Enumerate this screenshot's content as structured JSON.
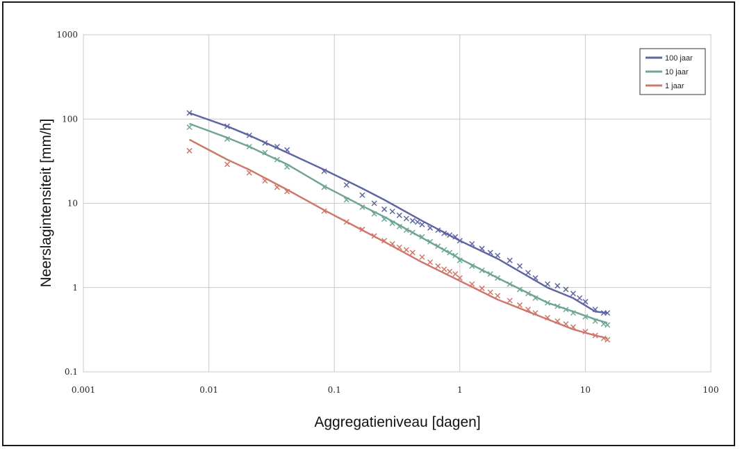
{
  "chart_data": {
    "type": "line",
    "title": "",
    "xlabel": "Aggregatieniveau [dagen]",
    "ylabel": "Neerslagintensiteit [mm/h]",
    "x_scale": "log",
    "y_scale": "log",
    "xlim": [
      0.001,
      100
    ],
    "ylim": [
      0.1,
      1000
    ],
    "x_ticks": [
      "0.001",
      "0.01",
      "0.1",
      "1",
      "10",
      "100"
    ],
    "y_ticks": [
      "1000",
      "100",
      "10",
      "1",
      "0.1"
    ],
    "grid": true,
    "legend_position": "top-right",
    "series": [
      {
        "name": "100 jaar",
        "color": "#5d66a3",
        "line": [
          [
            0.007,
            118
          ],
          [
            0.014,
            82
          ],
          [
            0.021,
            64
          ],
          [
            0.042,
            40
          ],
          [
            0.083,
            25
          ],
          [
            0.167,
            15
          ],
          [
            0.25,
            11
          ],
          [
            0.5,
            6.2
          ],
          [
            1,
            3.6
          ],
          [
            2,
            2.2
          ],
          [
            5,
            1.0
          ],
          [
            8,
            0.75
          ],
          [
            12,
            0.52
          ],
          [
            15,
            0.5
          ]
        ],
        "markers": [
          [
            0.007,
            118
          ],
          [
            0.014,
            82
          ],
          [
            0.021,
            64
          ],
          [
            0.028,
            52
          ],
          [
            0.035,
            47
          ],
          [
            0.042,
            43
          ],
          [
            0.083,
            24
          ],
          [
            0.125,
            16.5
          ],
          [
            0.167,
            12.5
          ],
          [
            0.208,
            10
          ],
          [
            0.25,
            8.5
          ],
          [
            0.29,
            8
          ],
          [
            0.33,
            7.2
          ],
          [
            0.375,
            6.6
          ],
          [
            0.42,
            6.2
          ],
          [
            0.46,
            6
          ],
          [
            0.5,
            5.6
          ],
          [
            0.58,
            5.1
          ],
          [
            0.67,
            4.8
          ],
          [
            0.75,
            4.4
          ],
          [
            0.83,
            4.2
          ],
          [
            0.92,
            4.0
          ],
          [
            1.0,
            3.6
          ],
          [
            1.25,
            3.3
          ],
          [
            1.5,
            2.9
          ],
          [
            1.75,
            2.6
          ],
          [
            2,
            2.4
          ],
          [
            2.5,
            2.1
          ],
          [
            3,
            1.8
          ],
          [
            3.5,
            1.5
          ],
          [
            4,
            1.3
          ],
          [
            5,
            1.1
          ],
          [
            6,
            1.05
          ],
          [
            7,
            0.95
          ],
          [
            8,
            0.85
          ],
          [
            9,
            0.75
          ],
          [
            10,
            0.68
          ],
          [
            12,
            0.55
          ],
          [
            14,
            0.5
          ],
          [
            15,
            0.5
          ]
        ]
      },
      {
        "name": "10 jaar",
        "color": "#6fa595",
        "line": [
          [
            0.007,
            88
          ],
          [
            0.014,
            60
          ],
          [
            0.021,
            47
          ],
          [
            0.042,
            29
          ],
          [
            0.083,
            16
          ],
          [
            0.167,
            9.3
          ],
          [
            0.25,
            6.9
          ],
          [
            0.5,
            3.9
          ],
          [
            1,
            2.2
          ],
          [
            2,
            1.3
          ],
          [
            5,
            0.66
          ],
          [
            8,
            0.52
          ],
          [
            12,
            0.42
          ],
          [
            15,
            0.38
          ]
        ],
        "markers": [
          [
            0.007,
            80
          ],
          [
            0.014,
            58
          ],
          [
            0.021,
            47
          ],
          [
            0.028,
            40
          ],
          [
            0.035,
            33
          ],
          [
            0.042,
            27
          ],
          [
            0.083,
            15.5
          ],
          [
            0.125,
            11
          ],
          [
            0.167,
            9
          ],
          [
            0.208,
            7.5
          ],
          [
            0.25,
            6.5
          ],
          [
            0.29,
            5.8
          ],
          [
            0.33,
            5.3
          ],
          [
            0.375,
            4.8
          ],
          [
            0.42,
            4.5
          ],
          [
            0.5,
            4.0
          ],
          [
            0.58,
            3.5
          ],
          [
            0.67,
            3.1
          ],
          [
            0.75,
            2.8
          ],
          [
            0.83,
            2.6
          ],
          [
            0.92,
            2.4
          ],
          [
            1.0,
            2.1
          ],
          [
            1.25,
            1.8
          ],
          [
            1.5,
            1.6
          ],
          [
            1.75,
            1.45
          ],
          [
            2,
            1.3
          ],
          [
            2.5,
            1.1
          ],
          [
            3,
            0.95
          ],
          [
            3.5,
            0.85
          ],
          [
            4,
            0.75
          ],
          [
            5,
            0.66
          ],
          [
            6,
            0.6
          ],
          [
            7,
            0.55
          ],
          [
            8,
            0.5
          ],
          [
            10,
            0.45
          ],
          [
            12,
            0.4
          ],
          [
            14,
            0.37
          ],
          [
            15,
            0.36
          ]
        ]
      },
      {
        "name": "1 jaar",
        "color": "#cf776b",
        "line": [
          [
            0.007,
            57
          ],
          [
            0.014,
            33
          ],
          [
            0.021,
            25
          ],
          [
            0.042,
            14.5
          ],
          [
            0.083,
            8.3
          ],
          [
            0.167,
            4.8
          ],
          [
            0.25,
            3.5
          ],
          [
            0.5,
            2.0
          ],
          [
            1,
            1.2
          ],
          [
            2,
            0.72
          ],
          [
            5,
            0.42
          ],
          [
            8,
            0.32
          ],
          [
            12,
            0.27
          ],
          [
            15,
            0.25
          ]
        ],
        "markers": [
          [
            0.007,
            42
          ],
          [
            0.014,
            29
          ],
          [
            0.021,
            23
          ],
          [
            0.028,
            18.5
          ],
          [
            0.035,
            15.5
          ],
          [
            0.042,
            13.8
          ],
          [
            0.083,
            8.1
          ],
          [
            0.125,
            6
          ],
          [
            0.167,
            4.9
          ],
          [
            0.208,
            4.1
          ],
          [
            0.25,
            3.6
          ],
          [
            0.29,
            3.3
          ],
          [
            0.33,
            3.0
          ],
          [
            0.375,
            2.8
          ],
          [
            0.42,
            2.6
          ],
          [
            0.5,
            2.3
          ],
          [
            0.58,
            2.0
          ],
          [
            0.67,
            1.8
          ],
          [
            0.75,
            1.65
          ],
          [
            0.83,
            1.55
          ],
          [
            0.92,
            1.45
          ],
          [
            1.0,
            1.3
          ],
          [
            1.25,
            1.1
          ],
          [
            1.5,
            0.98
          ],
          [
            1.75,
            0.88
          ],
          [
            2,
            0.8
          ],
          [
            2.5,
            0.7
          ],
          [
            3,
            0.62
          ],
          [
            3.5,
            0.55
          ],
          [
            4,
            0.5
          ],
          [
            5,
            0.44
          ],
          [
            6,
            0.4
          ],
          [
            7,
            0.37
          ],
          [
            8,
            0.34
          ],
          [
            10,
            0.3
          ],
          [
            12,
            0.27
          ],
          [
            14,
            0.25
          ],
          [
            15,
            0.24
          ]
        ]
      }
    ]
  }
}
